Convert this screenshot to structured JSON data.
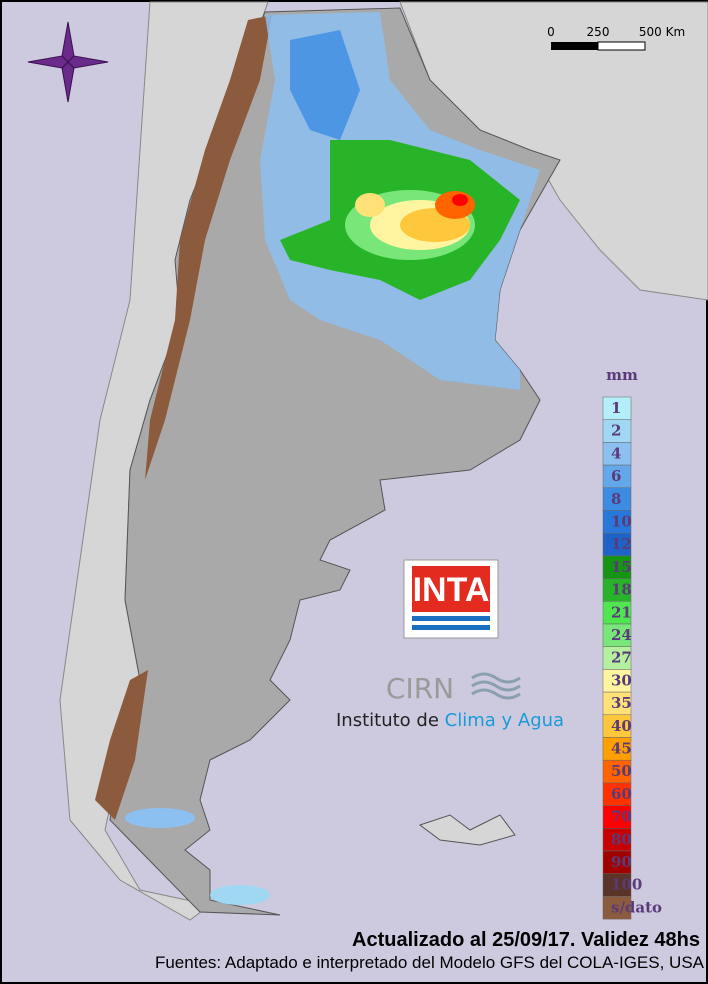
{
  "scale_bar": {
    "labels": [
      "0",
      "250",
      "500 Km"
    ]
  },
  "legend": {
    "unit": "mm",
    "items": [
      {
        "label": "1",
        "color": "#b4eef8"
      },
      {
        "label": "2",
        "color": "#a0d8f4"
      },
      {
        "label": "4",
        "color": "#8cc0f0"
      },
      {
        "label": "6",
        "color": "#64a8ec"
      },
      {
        "label": "8",
        "color": "#3c8ce4"
      },
      {
        "label": "10",
        "color": "#2878dc"
      },
      {
        "label": "12",
        "color": "#1e64c8"
      },
      {
        "label": "15",
        "color": "#149614"
      },
      {
        "label": "18",
        "color": "#28b428"
      },
      {
        "label": "21",
        "color": "#50e650"
      },
      {
        "label": "24",
        "color": "#78e678"
      },
      {
        "label": "27",
        "color": "#b4f0a0"
      },
      {
        "label": "30",
        "color": "#fff5a0"
      },
      {
        "label": "35",
        "color": "#ffe178"
      },
      {
        "label": "40",
        "color": "#ffc83c"
      },
      {
        "label": "45",
        "color": "#ffa000"
      },
      {
        "label": "50",
        "color": "#ff6400"
      },
      {
        "label": "60",
        "color": "#ff3200"
      },
      {
        "label": "70",
        "color": "#ff0000"
      },
      {
        "label": "80",
        "color": "#c80000"
      },
      {
        "label": "90",
        "color": "#a00000"
      },
      {
        "label": "100",
        "color": "#5a3428"
      },
      {
        "label": "s/dato",
        "color": "#8c5a3c"
      }
    ]
  },
  "logo": {
    "title": "INTA"
  },
  "institute": {
    "name": "CIRN",
    "prefix": "Instituto de",
    "highlight": "Clima y Agua"
  },
  "footer": {
    "updated": "Actualizado al 25/09/17. Validez 48hs",
    "sources": "Fuentes: Adaptado e interpretado del Modelo GFS del COLA-IGES, USA"
  }
}
